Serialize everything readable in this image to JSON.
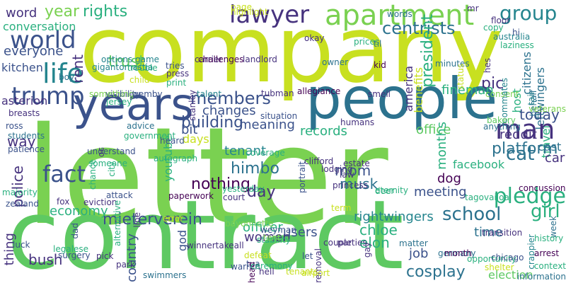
{
  "palette": {
    "yellow_green": "#c8e020",
    "light_green": "#7ad151",
    "green": "#5ec962",
    "teal_green": "#2ab07f",
    "teal": "#25858e",
    "blue_teal": "#2c728e",
    "steel_blue": "#3b528b",
    "indigo": "#46327e",
    "purple": "#440154",
    "background": "#ffffff"
  },
  "words": [
    {
      "text": "letter",
      "color": "#7ad151"
    },
    {
      "text": "contract",
      "color": "#5ec962"
    },
    {
      "text": "company",
      "color": "#c8e020"
    },
    {
      "text": "people",
      "color": "#2c728e"
    },
    {
      "text": "years",
      "color": "#3b528b"
    },
    {
      "text": "apartment",
      "color": "#7ad151"
    },
    {
      "text": "lawyer",
      "color": "#46327e"
    },
    {
      "text": "rights",
      "color": "#2ab07f"
    },
    {
      "text": "year",
      "color": "#7ad151"
    },
    {
      "text": "group",
      "color": "#25858e"
    },
    {
      "text": "centrists",
      "color": "#2c728e"
    },
    {
      "text": "pic",
      "color": "#46327e"
    },
    {
      "text": "world",
      "color": "#3b528b"
    },
    {
      "text": "word",
      "color": "#46327e"
    },
    {
      "text": "conversation",
      "color": "#2ab07f"
    },
    {
      "text": "everyone",
      "color": "#3b528b"
    },
    {
      "text": "kitchen",
      "color": "#3b528b"
    },
    {
      "text": "life",
      "color": "#25858e"
    },
    {
      "text": "trump",
      "color": "#3b528b"
    },
    {
      "text": "asterion",
      "color": "#46327e"
    },
    {
      "text": "rent",
      "color": "#46327e"
    },
    {
      "text": "trust",
      "color": "#5ec962"
    },
    {
      "text": "members",
      "color": "#3b528b"
    },
    {
      "text": "changes",
      "color": "#3b528b"
    },
    {
      "text": "benefits",
      "color": "#c8e020"
    },
    {
      "text": "president",
      "color": "#2ab07f"
    },
    {
      "text": "america",
      "color": "#46327e"
    },
    {
      "text": "allegiance",
      "color": "#440154"
    },
    {
      "text": "fineman",
      "color": "#2ab07f"
    },
    {
      "text": "leftwingers",
      "color": "#2c728e"
    },
    {
      "text": "citizens",
      "color": "#2c728e"
    },
    {
      "text": "host",
      "color": "#2ab07f"
    },
    {
      "text": "today",
      "color": "#3b528b"
    },
    {
      "text": "reddit",
      "color": "#46327e"
    },
    {
      "text": "travel",
      "color": "#2ab07f"
    },
    {
      "text": "man",
      "color": "#46327e"
    },
    {
      "text": "cat",
      "color": "#2c728e"
    },
    {
      "text": "cast",
      "color": "#2c728e"
    },
    {
      "text": "car",
      "color": "#46327e"
    },
    {
      "text": "platform",
      "color": "#2c728e"
    },
    {
      "text": "facebook",
      "color": "#2ab07f"
    },
    {
      "text": "office",
      "color": "#5ec962"
    },
    {
      "text": "records",
      "color": "#2ab07f"
    },
    {
      "text": "months",
      "color": "#2ab07f"
    },
    {
      "text": "meaning",
      "color": "#3b528b"
    },
    {
      "text": "building",
      "color": "#3b528b"
    },
    {
      "text": "bit",
      "color": "#3b528b"
    },
    {
      "text": "way",
      "color": "#46327e"
    },
    {
      "text": "days",
      "color": "#c8e020"
    },
    {
      "text": "youtube",
      "color": "#2ab07f"
    },
    {
      "text": "fact",
      "color": "#3b528b"
    },
    {
      "text": "police",
      "color": "#46327e"
    },
    {
      "text": "economy",
      "color": "#2ab07f"
    },
    {
      "text": "tenant",
      "color": "#25858e"
    },
    {
      "text": "nothing",
      "color": "#440154"
    },
    {
      "text": "himbo",
      "color": "#2c728e"
    },
    {
      "text": "day",
      "color": "#46327e"
    },
    {
      "text": "mom",
      "color": "#3b528b"
    },
    {
      "text": "musk",
      "color": "#2c728e"
    },
    {
      "text": "dog",
      "color": "#440154"
    },
    {
      "text": "meeting",
      "color": "#3b528b"
    },
    {
      "text": "mieterverein",
      "color": "#3b528b"
    },
    {
      "text": "women",
      "color": "#46327e"
    },
    {
      "text": "officer",
      "color": "#2ab07f"
    },
    {
      "text": "rightwingers",
      "color": "#25858e"
    },
    {
      "text": "school",
      "color": "#2c728e"
    },
    {
      "text": "pledge",
      "color": "#2ab07f"
    },
    {
      "text": "girl",
      "color": "#2ab07f"
    },
    {
      "text": "chloe",
      "color": "#2ab07f"
    },
    {
      "text": "users",
      "color": "#3b528b"
    },
    {
      "text": "elon",
      "color": "#2ab07f"
    },
    {
      "text": "job",
      "color": "#3b528b"
    },
    {
      "text": "cosplay",
      "color": "#2c728e"
    },
    {
      "text": "time",
      "color": "#2c728e"
    },
    {
      "text": "country",
      "color": "#3b528b"
    },
    {
      "text": "god",
      "color": "#3b528b"
    },
    {
      "text": "thing",
      "color": "#46327e"
    },
    {
      "text": "bush",
      "color": "#46327e"
    },
    {
      "text": "election",
      "color": "#5ec962"
    },
    {
      "text": "zealand",
      "color": "#3b528b"
    },
    {
      "text": "fox",
      "color": "#46327e"
    },
    {
      "text": "eviction",
      "color": "#46327e"
    },
    {
      "text": "options game",
      "color": "#25858e"
    },
    {
      "text": "gigantomastia",
      "color": "#25858e"
    },
    {
      "text": "boy",
      "color": "#2c728e"
    },
    {
      "text": "trouble",
      "color": "#2ab07f"
    },
    {
      "text": "child",
      "color": "#c8e020"
    },
    {
      "text": "tries",
      "color": "#3b528b"
    },
    {
      "text": "press",
      "color": "#46327e"
    },
    {
      "text": "print",
      "color": "#2ab07f"
    },
    {
      "text": "carrier",
      "color": "#46327e"
    },
    {
      "text": "challenges",
      "color": "#440154"
    },
    {
      "text": "landlord",
      "color": "#46327e"
    },
    {
      "text": "highlight",
      "color": "#c8e020"
    },
    {
      "text": "page",
      "color": "#c8e020"
    },
    {
      "text": "words",
      "color": "#2c728e"
    },
    {
      "text": "prices",
      "color": "#2ab07f"
    },
    {
      "text": "okay",
      "color": "#46327e"
    },
    {
      "text": "til",
      "color": "#2c728e"
    },
    {
      "text": "kid",
      "color": "#440154"
    },
    {
      "text": "owner",
      "color": "#2c728e"
    },
    {
      "text": "minutes",
      "color": "#2c728e"
    },
    {
      "text": "floor",
      "color": "#46327e"
    },
    {
      "text": "copy",
      "color": "#2ab07f"
    },
    {
      "text": "australia",
      "color": "#25858e"
    },
    {
      "text": "laziness",
      "color": "#2ab07f"
    },
    {
      "text": "hi",
      "color": "#3b528b"
    },
    {
      "text": "mr",
      "color": "#46327e"
    },
    {
      "text": "stanley",
      "color": "#46327e"
    },
    {
      "text": "talent",
      "color": "#25858e"
    },
    {
      "text": "tubman",
      "color": "#46327e"
    },
    {
      "text": "visibility",
      "color": "#3b528b"
    },
    {
      "text": "jersey",
      "color": "#2ab07f"
    },
    {
      "text": "something",
      "color": "#7ad151"
    },
    {
      "text": "wemby",
      "color": "#3b528b"
    },
    {
      "text": "smell",
      "color": "#46327e"
    },
    {
      "text": "consent",
      "color": "#7ad151"
    },
    {
      "text": "behalf",
      "color": "#2c728e"
    },
    {
      "text": "tail",
      "color": "#25858e"
    },
    {
      "text": "veterans",
      "color": "#7ad151"
    },
    {
      "text": "status",
      "color": "#c8e020"
    },
    {
      "text": "roommates",
      "color": "#25858e"
    },
    {
      "text": "hes",
      "color": "#46327e"
    },
    {
      "text": "breasts",
      "color": "#46327e"
    },
    {
      "text": "ross",
      "color": "#3b528b"
    },
    {
      "text": "students",
      "color": "#2c728e"
    },
    {
      "text": "patience",
      "color": "#3b528b"
    },
    {
      "text": "advice",
      "color": "#2c728e"
    },
    {
      "text": "government",
      "color": "#2ab07f"
    },
    {
      "text": "coverage",
      "color": "#2ab07f"
    },
    {
      "text": "heard",
      "color": "#3b528b"
    },
    {
      "text": "situation",
      "color": "#3b528b"
    },
    {
      "text": "humans",
      "color": "#46327e"
    },
    {
      "text": "bakery",
      "color": "#5ec962"
    },
    {
      "text": "anything",
      "color": "#2c728e"
    },
    {
      "text": "understand",
      "color": "#3b528b"
    },
    {
      "text": "oc",
      "color": "#46327e"
    },
    {
      "text": "someone",
      "color": "#2ab07f"
    },
    {
      "text": "chance",
      "color": "#2ab07f"
    },
    {
      "text": "city",
      "color": "#2ab07f"
    },
    {
      "text": "autograph",
      "color": "#2ab07f"
    },
    {
      "text": "majority",
      "color": "#2ab07f"
    },
    {
      "text": "attack",
      "color": "#3b528b"
    },
    {
      "text": "alternative",
      "color": "#2ab07f"
    },
    {
      "text": "line",
      "color": "#46327e"
    },
    {
      "text": "court",
      "color": "#46327e"
    },
    {
      "text": "yesterday",
      "color": "#2ab07f"
    },
    {
      "text": "princess",
      "color": "#46327e"
    },
    {
      "text": "clifford",
      "color": "#46327e"
    },
    {
      "text": "lodging",
      "color": "#46327e"
    },
    {
      "text": "estate",
      "color": "#46327e"
    },
    {
      "text": "law",
      "color": "#46327e"
    },
    {
      "text": "deer",
      "color": "#2ab07f"
    },
    {
      "text": "eternity",
      "color": "#2ab07f"
    },
    {
      "text": "paperwork",
      "color": "#440154"
    },
    {
      "text": "portrait",
      "color": "#3b528b"
    },
    {
      "text": "term",
      "color": "#c8e020"
    },
    {
      "text": "transition",
      "color": "#46327e"
    },
    {
      "text": "concussion",
      "color": "#440154"
    },
    {
      "text": "tagovailoa",
      "color": "#2ab07f"
    },
    {
      "text": "week",
      "color": "#2c728e"
    },
    {
      "text": "crappier",
      "color": "#25858e"
    },
    {
      "text": "history",
      "color": "#2ab07f"
    },
    {
      "text": "error",
      "color": "#c8e020"
    },
    {
      "text": "bayonnette",
      "color": "#7ad151"
    },
    {
      "text": "weyman",
      "color": "#3b528b"
    },
    {
      "text": "stability",
      "color": "#2ab07f"
    },
    {
      "text": "parties",
      "color": "#46327e"
    },
    {
      "text": "matter",
      "color": "#2c728e"
    },
    {
      "text": "luck",
      "color": "#3b528b"
    },
    {
      "text": "legalese",
      "color": "#2ab07f"
    },
    {
      "text": "surgery",
      "color": "#3b528b"
    },
    {
      "text": "warren",
      "color": "#3b528b"
    },
    {
      "text": "defeat",
      "color": "#c8e020"
    },
    {
      "text": "tua",
      "color": "#3b528b"
    },
    {
      "text": "let",
      "color": "#3b528b"
    },
    {
      "text": "couple",
      "color": "#46327e"
    },
    {
      "text": "winnertakeall",
      "color": "#46327e"
    },
    {
      "text": "dad",
      "color": "#3b528b"
    },
    {
      "text": "pick",
      "color": "#46327e"
    },
    {
      "text": "park",
      "color": "#46327e"
    },
    {
      "text": "head",
      "color": "#440154"
    },
    {
      "text": "ceremony",
      "color": "#2ab07f"
    },
    {
      "text": "hell",
      "color": "#46327e"
    },
    {
      "text": "airport",
      "color": "#c8e020"
    },
    {
      "text": "gay",
      "color": "#46327e"
    },
    {
      "text": "germany",
      "color": "#2c728e"
    },
    {
      "text": "month",
      "color": "#440154"
    },
    {
      "text": "removal",
      "color": "#46327e"
    },
    {
      "text": "opportunity",
      "color": "#2ab07f"
    },
    {
      "text": "shelter",
      "color": "#c8e020"
    },
    {
      "text": "chicago",
      "color": "#3b528b"
    },
    {
      "text": "arrest",
      "color": "#440154"
    },
    {
      "text": "context",
      "color": "#2ab07f"
    },
    {
      "text": "information",
      "color": "#2c728e"
    },
    {
      "text": "swimmers",
      "color": "#2c728e"
    },
    {
      "text": "tenants",
      "color": "#c8e020"
    },
    {
      "text": "tent",
      "color": "#7ad151"
    }
  ]
}
